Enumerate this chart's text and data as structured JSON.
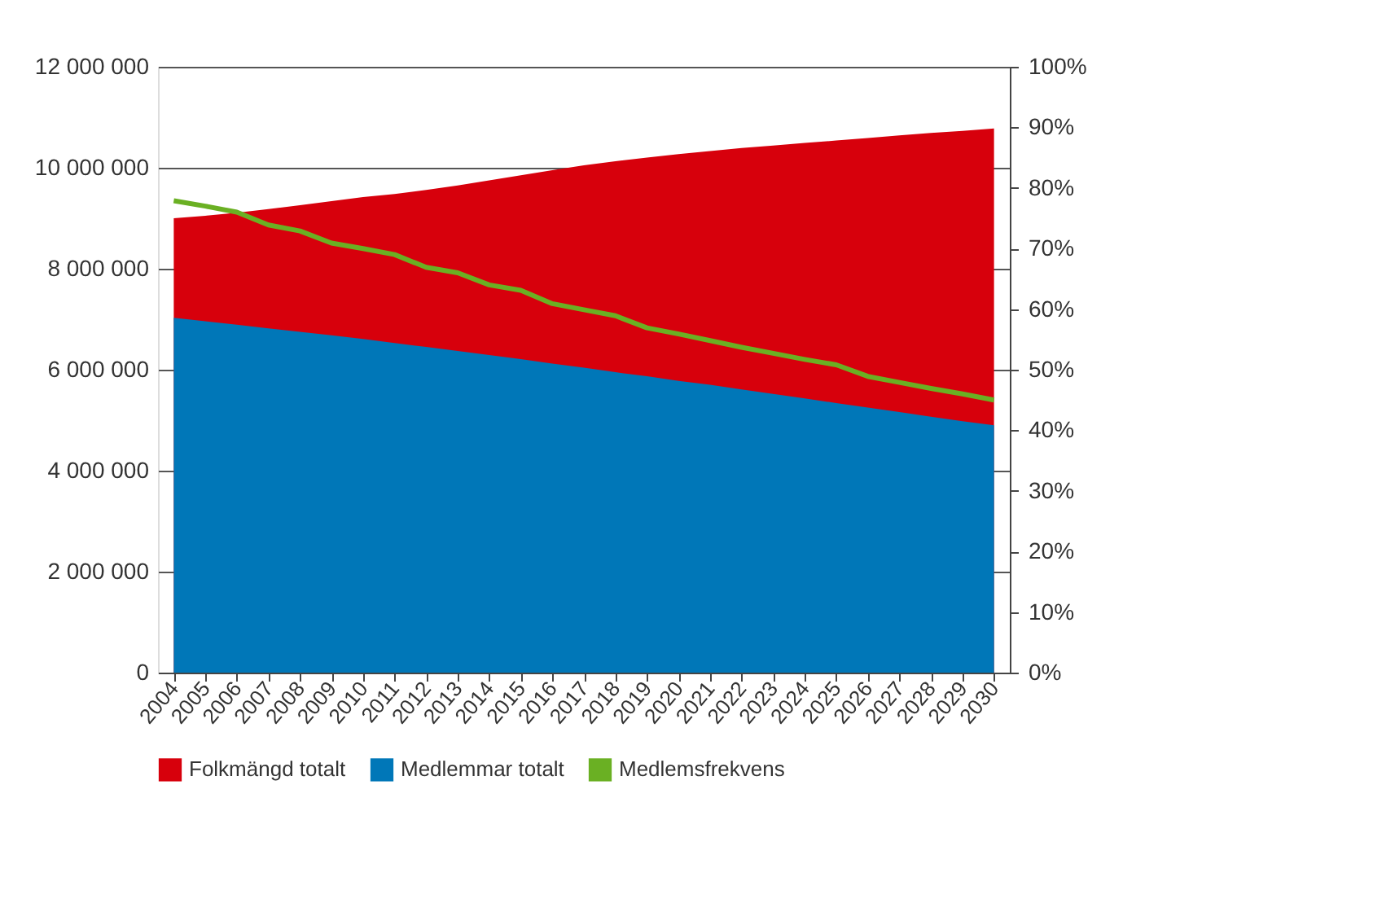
{
  "chart_data": {
    "type": "area",
    "categories": [
      "2004",
      "2005",
      "2006",
      "2007",
      "2008",
      "2009",
      "2010",
      "2011",
      "2012",
      "2013",
      "2014",
      "2015",
      "2016",
      "2017",
      "2018",
      "2019",
      "2020",
      "2021",
      "2022",
      "2023",
      "2024",
      "2025",
      "2026",
      "2027",
      "2028",
      "2029",
      "2030"
    ],
    "series": [
      {
        "name": "Folkmängd totalt",
        "color": "#d7000c",
        "values": [
          9000000,
          9050000,
          9110000,
          9180000,
          9260000,
          9340000,
          9420000,
          9480000,
          9560000,
          9650000,
          9750000,
          9850000,
          9950000,
          10050000,
          10130000,
          10200000,
          10270000,
          10330000,
          10390000,
          10440000,
          10490000,
          10540000,
          10590000,
          10640000,
          10690000,
          10730000,
          10780000
        ]
      },
      {
        "name": "Medlemmar totalt",
        "color": "#0077b8",
        "values": [
          7030000,
          6960000,
          6890000,
          6820000,
          6750000,
          6680000,
          6610000,
          6530000,
          6450000,
          6370000,
          6290000,
          6210000,
          6120000,
          6040000,
          5950000,
          5870000,
          5780000,
          5700000,
          5610000,
          5520000,
          5430000,
          5340000,
          5250000,
          5160000,
          5070000,
          4980000,
          4900000
        ]
      },
      {
        "name": "Medlemsfrekvens",
        "type": "line",
        "axis": "y2",
        "color": "#6ab023",
        "values": [
          77.9,
          77.0,
          76.0,
          73.9,
          72.9,
          70.9,
          70.0,
          69.0,
          66.9,
          66.0,
          64.0,
          63.1,
          60.9,
          59.9,
          58.9,
          56.9,
          55.9,
          54.8,
          53.7,
          52.7,
          51.7,
          50.8,
          48.9,
          47.9,
          46.9,
          46.0,
          45.0
        ]
      }
    ],
    "ylim": [
      0,
      12000000
    ],
    "yticks": [
      {
        "value": 0,
        "label": "0"
      },
      {
        "value": 2000000,
        "label": "2 000 000"
      },
      {
        "value": 4000000,
        "label": "4 000 000"
      },
      {
        "value": 6000000,
        "label": "6 000 000"
      },
      {
        "value": 8000000,
        "label": "8 000 000"
      },
      {
        "value": 10000000,
        "label": "10 000 000"
      },
      {
        "value": 12000000,
        "label": "12 000 000"
      }
    ],
    "y2lim": [
      0,
      100
    ],
    "y2ticks": [
      {
        "value": 0,
        "label": "0%"
      },
      {
        "value": 10,
        "label": "10%"
      },
      {
        "value": 20,
        "label": "20%"
      },
      {
        "value": 30,
        "label": "30%"
      },
      {
        "value": 40,
        "label": "40%"
      },
      {
        "value": 50,
        "label": "50%"
      },
      {
        "value": 60,
        "label": "60%"
      },
      {
        "value": 70,
        "label": "70%"
      },
      {
        "value": 80,
        "label": "80%"
      },
      {
        "value": 90,
        "label": "90%"
      },
      {
        "value": 100,
        "label": "100%"
      }
    ],
    "grid": "y",
    "legend": "bottom",
    "marker": "none",
    "line_style": "solid"
  }
}
